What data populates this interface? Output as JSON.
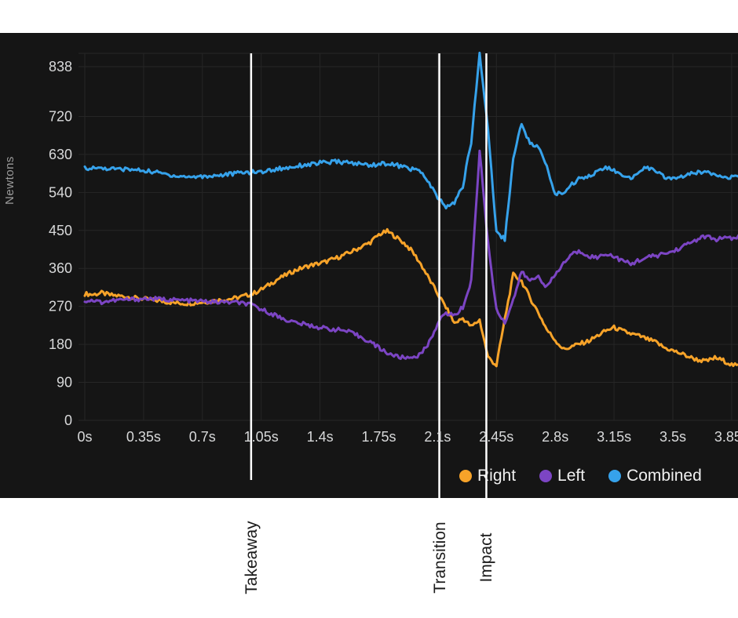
{
  "colors": {
    "page_bg": "#FFFFFF",
    "panel_bg": "#151515",
    "grid": "#262626",
    "tick_text": "#D8D9DA",
    "axis_title_text": "#9B9B9B",
    "event_line": "#FFFFFF",
    "event_label_text": "#1B1B1B",
    "legend_text": "#F0F0F0"
  },
  "chart_data": {
    "type": "line",
    "title": "",
    "xlabel": "",
    "ylabel": "Newtons",
    "ylim": [
      0,
      880
    ],
    "xlim": [
      0,
      3.89
    ],
    "grid": true,
    "legend_position": "bottom-right",
    "x_start": 0,
    "x_step": 0.05,
    "x_tick_values": [
      0,
      0.35,
      0.7,
      1.05,
      1.4,
      1.75,
      2.1,
      2.45,
      2.8,
      3.15,
      3.5,
      3.85
    ],
    "x_tick_labels": [
      "0s",
      "0.35s",
      "0.7s",
      "1.05s",
      "1.4s",
      "1.75s",
      "2.1s",
      "2.45s",
      "2.8s",
      "3.15s",
      "3.5s",
      "3.85s"
    ],
    "y_tick_values": [
      838,
      720,
      630,
      540,
      450,
      360,
      270,
      180,
      90,
      0
    ],
    "y_tick_labels": [
      "838",
      "720",
      "630",
      "540",
      "450",
      "360",
      "270",
      "180",
      "90",
      "0"
    ],
    "events": [
      {
        "label": "Takeaway",
        "t": 0.99
      },
      {
        "label": "Transition",
        "t": 2.11
      },
      {
        "label": "Impact",
        "t": 2.39
      }
    ],
    "series": [
      {
        "name": "Right",
        "color": "#F7A329",
        "noise": 5,
        "values": [
          300,
          298,
          302,
          297,
          295,
          293,
          290,
          288,
          285,
          283,
          280,
          278,
          277,
          278,
          280,
          282,
          285,
          287,
          290,
          295,
          300,
          310,
          322,
          335,
          345,
          355,
          362,
          368,
          372,
          378,
          385,
          393,
          402,
          412,
          422,
          440,
          448,
          435,
          420,
          400,
          370,
          335,
          300,
          268,
          230,
          242,
          222,
          238,
          150,
          130,
          240,
          345,
          330,
          290,
          255,
          215,
          190,
          168,
          175,
          182,
          188,
          200,
          212,
          220,
          212,
          205,
          200,
          192,
          185,
          172,
          165,
          158,
          150,
          143,
          140,
          148,
          142,
          132,
          128,
          130,
          125
        ]
      },
      {
        "name": "Left",
        "color": "#7C45C4",
        "noise": 5,
        "values": [
          283,
          284,
          280,
          283,
          285,
          286,
          287,
          288,
          288,
          287,
          286,
          285,
          284,
          283,
          282,
          281,
          280,
          280,
          279,
          277,
          272,
          263,
          255,
          246,
          238,
          232,
          228,
          224,
          220,
          217,
          215,
          212,
          205,
          196,
          186,
          172,
          160,
          152,
          148,
          150,
          156,
          185,
          230,
          255,
          248,
          268,
          330,
          640,
          420,
          262,
          232,
          285,
          352,
          330,
          342,
          315,
          345,
          372,
          395,
          400,
          390,
          385,
          396,
          388,
          378,
          370,
          380,
          386,
          390,
          395,
          400,
          410,
          420,
          430,
          436,
          428,
          432,
          430,
          437,
          440,
          445
        ]
      },
      {
        "name": "Combined",
        "color": "#36A2EB",
        "noise": 5,
        "values": [
          599,
          597,
          598,
          596,
          595,
          595,
          593,
          592,
          589,
          586,
          582,
          579,
          577,
          577,
          578,
          579,
          581,
          583,
          585,
          588,
          588,
          589,
          592,
          596,
          598,
          602,
          605,
          607,
          610,
          611,
          613,
          611,
          609,
          607,
          605,
          607,
          609,
          605,
          600,
          595,
          590,
          560,
          528,
          505,
          515,
          555,
          660,
          870,
          690,
          445,
          430,
          620,
          705,
          655,
          648,
          600,
          535,
          540,
          560,
          575,
          580,
          588,
          600,
          592,
          578,
          572,
          592,
          600,
          588,
          577,
          572,
          578,
          583,
          587,
          590,
          584,
          580,
          575,
          580,
          583,
          585
        ]
      }
    ]
  }
}
